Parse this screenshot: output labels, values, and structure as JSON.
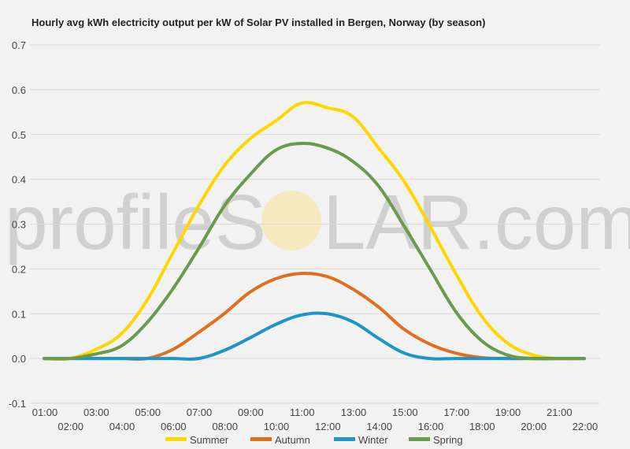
{
  "chart_data": {
    "type": "line",
    "title": "Hourly avg kWh electricity output per kW of Solar PV installed in Bergen, Norway (by season)",
    "watermark_left": "profileS",
    "watermark_right": "LAR.com",
    "x": [
      "01:00",
      "02:00",
      "03:00",
      "04:00",
      "05:00",
      "06:00",
      "07:00",
      "08:00",
      "09:00",
      "10:00",
      "11:00",
      "12:00",
      "13:00",
      "14:00",
      "15:00",
      "16:00",
      "17:00",
      "18:00",
      "19:00",
      "20:00",
      "21:00",
      "22:00"
    ],
    "ylim": [
      -0.1,
      0.7
    ],
    "yticks": [
      "-0.1",
      "0.0",
      "0.1",
      "0.2",
      "0.3",
      "0.4",
      "0.5",
      "0.6",
      "0.7"
    ],
    "grid": true,
    "legend_position": "bottom",
    "series": [
      {
        "name": "Summer",
        "color": "#ffd700",
        "values": [
          0,
          0,
          0.02,
          0.055,
          0.13,
          0.235,
          0.34,
          0.43,
          0.49,
          0.53,
          0.57,
          0.56,
          0.54,
          0.47,
          0.395,
          0.295,
          0.19,
          0.095,
          0.035,
          0.008,
          0.0,
          0
        ]
      },
      {
        "name": "Autumn",
        "color": "#e07020",
        "values": [
          0,
          0,
          0,
          0,
          0,
          0.02,
          0.058,
          0.1,
          0.148,
          0.178,
          0.19,
          0.183,
          0.155,
          0.115,
          0.065,
          0.032,
          0.012,
          0.002,
          0,
          0,
          0,
          0
        ]
      },
      {
        "name": "Winter",
        "color": "#1f94c6",
        "values": [
          0,
          0,
          0,
          0,
          0,
          0,
          0,
          0.018,
          0.046,
          0.076,
          0.097,
          0.1,
          0.082,
          0.045,
          0.012,
          0,
          0,
          0,
          0,
          0,
          0,
          0
        ]
      },
      {
        "name": "Spring",
        "color": "#6a9a4c",
        "values": [
          0,
          0,
          0.01,
          0.028,
          0.08,
          0.155,
          0.245,
          0.34,
          0.41,
          0.465,
          0.48,
          0.47,
          0.44,
          0.385,
          0.295,
          0.2,
          0.105,
          0.04,
          0.008,
          0,
          0,
          0
        ]
      }
    ]
  }
}
